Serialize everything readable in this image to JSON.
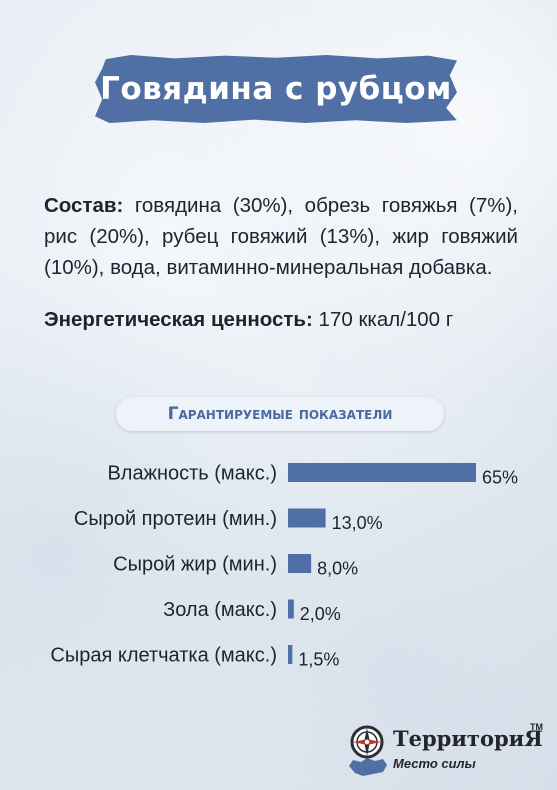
{
  "title": "Говядина с рубцом",
  "composition": {
    "label": "Состав:",
    "text": " говядина (30%), обрезь говяжья (7%), рис (20%), рубец говяжий (13%), жир говяжий (10%), вода, витаминно-минеральная добавка."
  },
  "energy": {
    "label": "Энергетическая ценность:",
    "value": " 170 ккал/100 г"
  },
  "chart_heading": "Гарантируемые показатели",
  "chart_data": {
    "type": "bar",
    "orientation": "horizontal",
    "title": "Гарантируемые показатели",
    "categories": [
      "Влажность (макс.)",
      "Сырой протеин (мин.)",
      "Сырой жир (мин.)",
      "Зола (макс.)",
      "Сырая клетчатка (макс.)"
    ],
    "values": [
      65,
      13.0,
      8.0,
      2.0,
      1.5
    ],
    "value_labels": [
      "65%",
      "13,0%",
      "8,0%",
      "2,0%",
      "1,5%"
    ],
    "xlim": [
      0,
      65
    ],
    "grid": false,
    "bar_color": "#4f6fa5"
  },
  "logo": {
    "name": "ТерриториЯ",
    "tm": "TM",
    "tagline": "Место силы"
  }
}
